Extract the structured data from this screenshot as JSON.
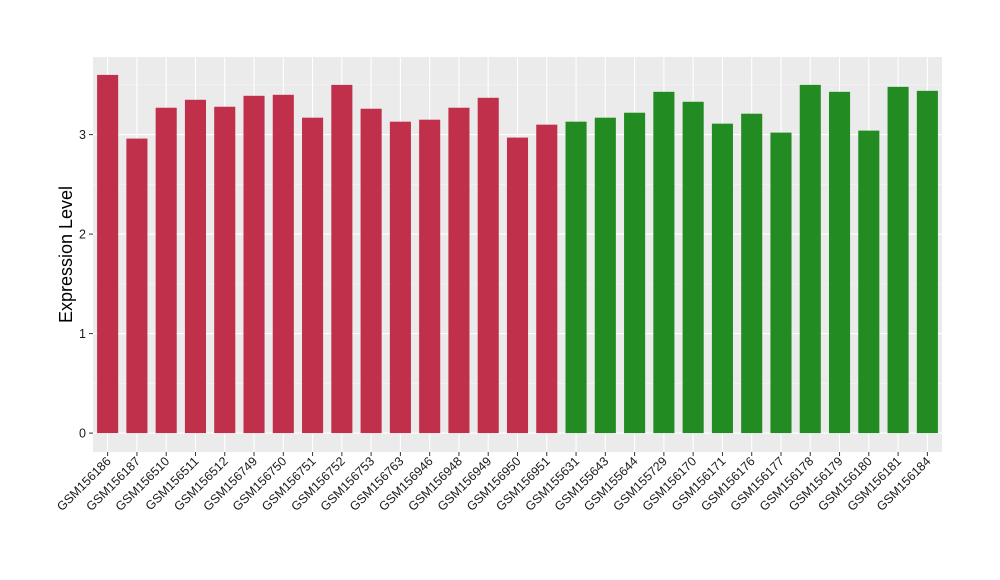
{
  "chart_data": {
    "type": "bar",
    "title": "",
    "xlabel": "",
    "ylabel": "Expression Level",
    "ylim": [
      -0.19,
      3.78
    ],
    "yticks": [
      0,
      1,
      2,
      3
    ],
    "grid": true,
    "legend": "none",
    "categories": [
      "GSM156186",
      "GSM156187",
      "GSM156510",
      "GSM156511",
      "GSM156512",
      "GSM156749",
      "GSM156750",
      "GSM156751",
      "GSM156752",
      "GSM156753",
      "GSM156763",
      "GSM156946",
      "GSM156948",
      "GSM156949",
      "GSM156950",
      "GSM156951",
      "GSM155631",
      "GSM155643",
      "GSM155644",
      "GSM155729",
      "GSM156170",
      "GSM156171",
      "GSM156176",
      "GSM156177",
      "GSM156178",
      "GSM156179",
      "GSM156180",
      "GSM156181",
      "GSM156184"
    ],
    "values": [
      3.6,
      2.96,
      3.27,
      3.35,
      3.28,
      3.39,
      3.4,
      3.17,
      3.5,
      3.26,
      3.13,
      3.15,
      3.27,
      3.37,
      2.97,
      3.1,
      3.13,
      3.17,
      3.22,
      3.43,
      3.33,
      3.11,
      3.21,
      3.02,
      3.5,
      3.43,
      3.04,
      3.48,
      3.44
    ],
    "groups": [
      0,
      0,
      0,
      0,
      0,
      0,
      0,
      0,
      0,
      0,
      0,
      0,
      0,
      0,
      0,
      0,
      1,
      1,
      1,
      1,
      1,
      1,
      1,
      1,
      1,
      1,
      1,
      1,
      1
    ],
    "colors": [
      "#c1304a",
      "#228b22"
    ]
  },
  "style": {
    "panel_bg": "#ebebeb",
    "grid_major": "#ffffff",
    "grid_minor": "#f5f5f5",
    "tick_color": "#333333"
  }
}
